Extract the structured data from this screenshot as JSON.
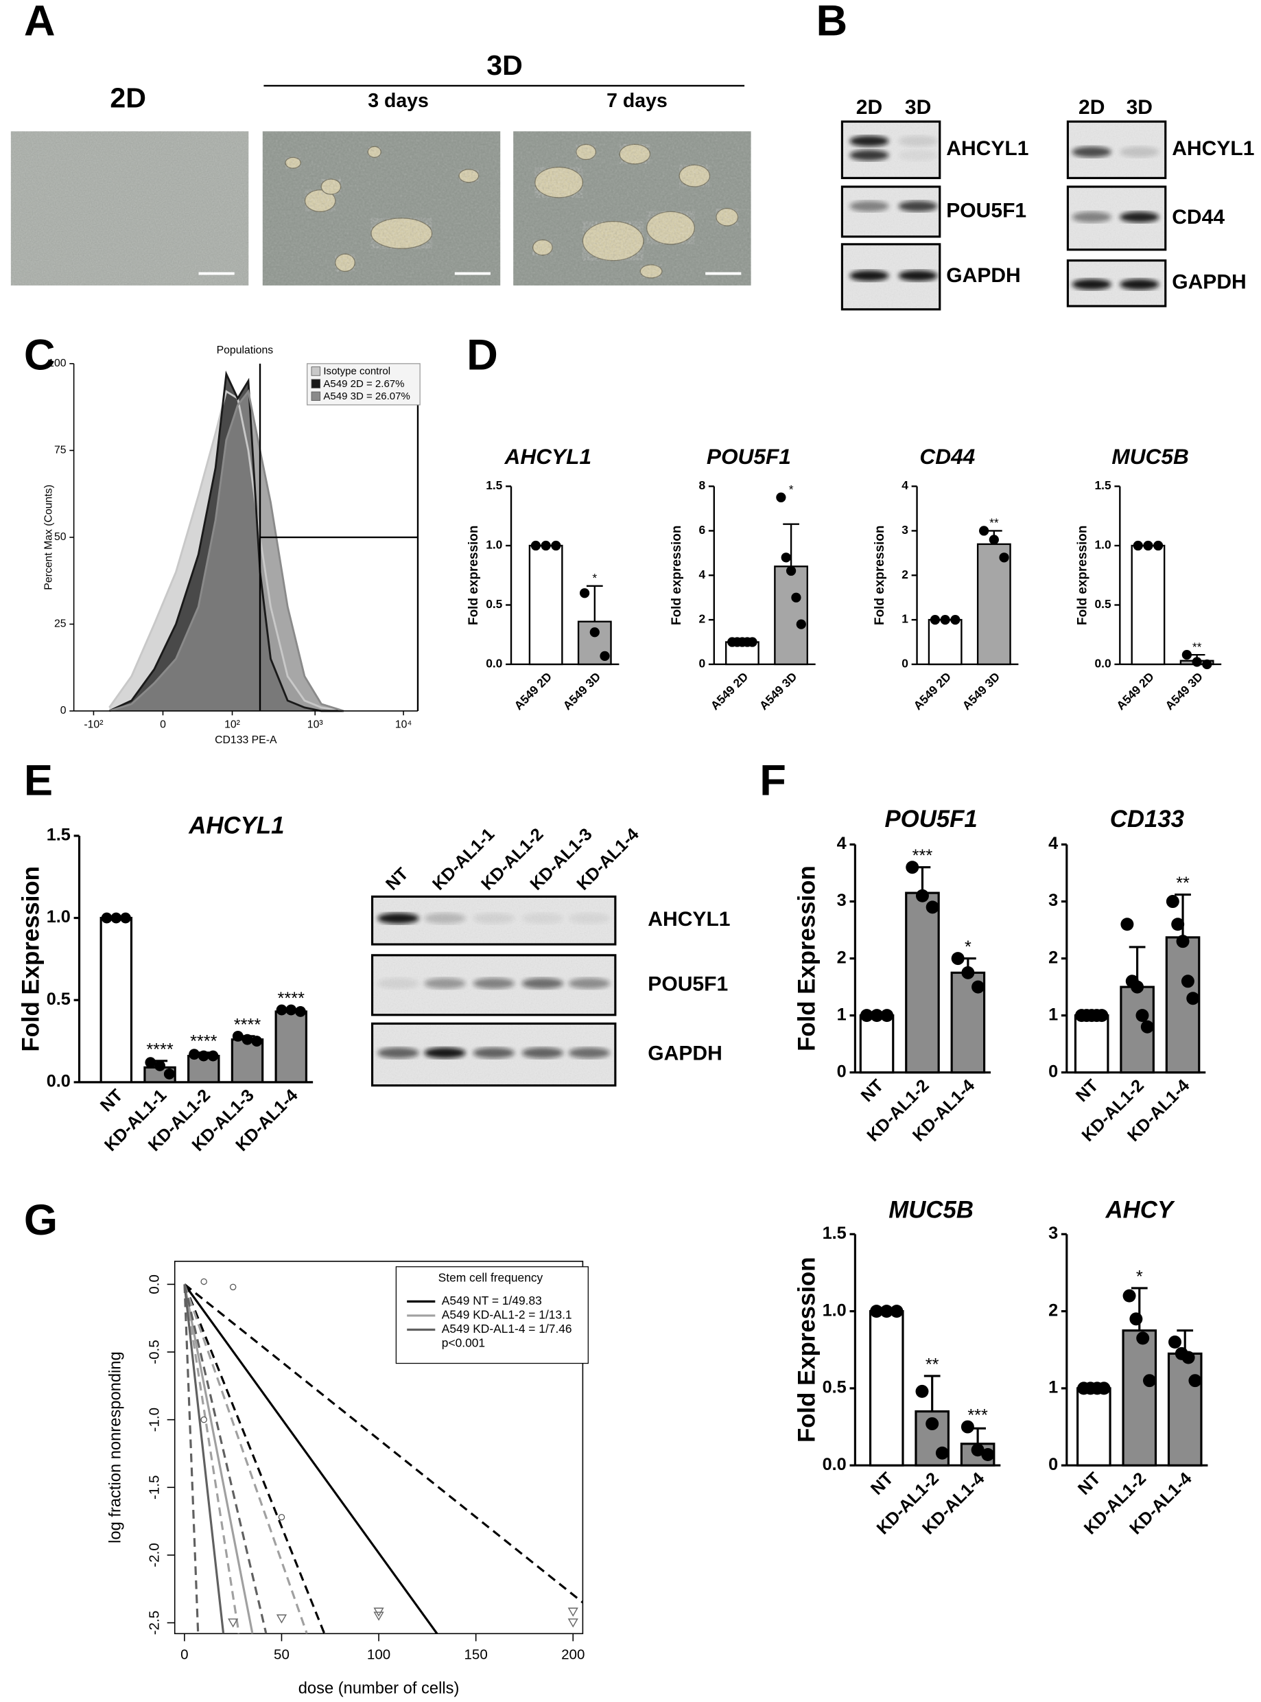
{
  "panels": {
    "a": "A",
    "b": "B",
    "c": "C",
    "d": "D",
    "e": "E",
    "f": "F",
    "g": "G"
  },
  "panel_a": {
    "left": "2D",
    "right": "3D",
    "day3": "3 days",
    "day7": "7 days"
  },
  "blots": [
    {
      "lanes": [
        "2D",
        "3D"
      ],
      "proteins": [
        "AHCYL1",
        "POU5F1",
        "GAPDH"
      ]
    },
    {
      "lanes": [
        "2D",
        "3D"
      ],
      "proteins": [
        "AHCYL1",
        "CD44",
        "GAPDH"
      ]
    },
    {
      "lanes": [
        "NT",
        "KD-AL1-1",
        "KD-AL1-2",
        "KD-AL1-3",
        "KD-AL1-4"
      ],
      "proteins": [
        "AHCYL1",
        "POU5F1",
        "GAPDH"
      ]
    }
  ],
  "chart_data": [
    {
      "type": "area",
      "gate_label": "Populations",
      "xlabel": "CD133 PE-A",
      "ylabel": "Percent Max (Counts)",
      "xscale": "biexponential",
      "xlim": [
        -180,
        14500
      ],
      "xticks": [
        {
          "value": -100,
          "label": "-10²"
        },
        0,
        {
          "value": 100,
          "label": "10²"
        },
        {
          "value": 1000,
          "label": "10³"
        },
        {
          "value": 10000,
          "label": "10⁴"
        }
      ],
      "ylim": [
        0,
        100
      ],
      "yticks": [
        0,
        25,
        50,
        75,
        100
      ],
      "gate": {
        "x": 226,
        "y": 50
      },
      "legend": "upper right",
      "x": [
        -60,
        -25,
        -5,
        8,
        30,
        58,
        83,
        118,
        162,
        226,
        304,
        482,
        758,
        1180,
        2120
      ],
      "series": [
        {
          "name": "Isotype control",
          "color": "#c8c8c8",
          "values": [
            1,
            10,
            25,
            40,
            62,
            80,
            92,
            90,
            75,
            50,
            30,
            10,
            3,
            1,
            0
          ]
        },
        {
          "name": "A549 2D = 2.67%",
          "color": "#1a1a1a",
          "values": [
            0,
            3,
            12,
            25,
            45,
            70,
            97,
            90,
            95,
            40,
            15,
            3,
            1,
            0,
            0
          ]
        },
        {
          "name": "A549 3D = 26.07%",
          "color": "#8a8a8a",
          "values": [
            0,
            2,
            8,
            15,
            30,
            55,
            78,
            88,
            92,
            75,
            60,
            30,
            10,
            2,
            0
          ]
        }
      ]
    },
    {
      "type": "bar",
      "title": "AHCYL1",
      "ylabel": "Fold expression",
      "categories": [
        "A549 2D",
        "A549 3D"
      ],
      "values": [
        1.0,
        0.36
      ],
      "errors": [
        0,
        0.3
      ],
      "points": [
        [
          1,
          1,
          1
        ],
        [
          0.6,
          0.27,
          0.07
        ]
      ],
      "significance": [
        null,
        "*"
      ],
      "colors": [
        "#ffffff",
        "#a6a6a6"
      ],
      "ylim": [
        0,
        1.5
      ],
      "yticks": [
        {
          "value": 0,
          "label": "0.0"
        },
        {
          "value": 0.5,
          "label": "0.5"
        },
        {
          "value": 1,
          "label": "1.0"
        },
        {
          "value": 1.5,
          "label": "1.5"
        }
      ]
    },
    {
      "type": "bar",
      "title": "POU5F1",
      "ylabel": "Fold expression",
      "categories": [
        "A549 2D",
        "A549 3D"
      ],
      "values": [
        1.0,
        4.4
      ],
      "errors": [
        0,
        1.9
      ],
      "points": [
        [
          1,
          1,
          1,
          1,
          1
        ],
        [
          7.5,
          4.8,
          4.2,
          3.0,
          1.8
        ]
      ],
      "significance": [
        null,
        "*"
      ],
      "colors": [
        "#ffffff",
        "#a6a6a6"
      ],
      "ylim": [
        0,
        8
      ],
      "yticks": [
        0,
        2,
        4,
        6,
        8
      ]
    },
    {
      "type": "bar",
      "title": "CD44",
      "ylabel": "Fold expression",
      "categories": [
        "A549 2D",
        "A549 3D"
      ],
      "values": [
        1.0,
        2.7
      ],
      "errors": [
        0,
        0.3
      ],
      "points": [
        [
          1,
          1,
          1
        ],
        [
          3.0,
          2.8,
          2.4
        ]
      ],
      "significance": [
        null,
        "**"
      ],
      "colors": [
        "#ffffff",
        "#a6a6a6"
      ],
      "ylim": [
        0,
        4
      ],
      "yticks": [
        0,
        1,
        2,
        3,
        4
      ]
    },
    {
      "type": "bar",
      "title": "MUC5B",
      "ylabel": "Fold expression",
      "categories": [
        "A549 2D",
        "A549 3D"
      ],
      "values": [
        1.0,
        0.03
      ],
      "errors": [
        0,
        0.05
      ],
      "points": [
        [
          1,
          1,
          1
        ],
        [
          0.08,
          0.02,
          0.0
        ]
      ],
      "significance": [
        null,
        "**"
      ],
      "colors": [
        "#ffffff",
        "#a6a6a6"
      ],
      "ylim": [
        0,
        1.5
      ],
      "yticks": [
        {
          "value": 0,
          "label": "0.0"
        },
        {
          "value": 0.5,
          "label": "0.5"
        },
        {
          "value": 1,
          "label": "1.0"
        },
        {
          "value": 1.5,
          "label": "1.5"
        }
      ]
    },
    {
      "type": "bar",
      "title": "AHCYL1",
      "ylabel": "Fold Expression",
      "categories": [
        "NT",
        "KD-AL1-1",
        "KD-AL1-2",
        "KD-AL1-3",
        "KD-AL1-4"
      ],
      "values": [
        1.0,
        0.09,
        0.16,
        0.26,
        0.43
      ],
      "errors": [
        0,
        0.04,
        0.02,
        0.02,
        0.01
      ],
      "points": [
        [
          1,
          1,
          1
        ],
        [
          0.12,
          0.1,
          0.05
        ],
        [
          0.17,
          0.16,
          0.16
        ],
        [
          0.28,
          0.26,
          0.25
        ],
        [
          0.44,
          0.44,
          0.43
        ]
      ],
      "significance": [
        null,
        "****",
        "****",
        "****",
        "****"
      ],
      "colors": [
        "#ffffff",
        "#8c8c8c",
        "#8c8c8c",
        "#8c8c8c",
        "#8c8c8c"
      ],
      "ylim": [
        0,
        1.5
      ],
      "yticks": [
        {
          "value": 0,
          "label": "0.0"
        },
        {
          "value": 0.5,
          "label": "0.5"
        },
        {
          "value": 1,
          "label": "1.0"
        },
        {
          "value": 1.5,
          "label": "1.5"
        }
      ]
    },
    {
      "type": "bar",
      "title": "POU5F1",
      "ylabel": "Fold Expression",
      "categories": [
        "NT",
        "KD-AL1-2",
        "KD-AL1-4"
      ],
      "values": [
        1.0,
        3.15,
        1.75
      ],
      "errors": [
        0,
        0.45,
        0.25
      ],
      "points": [
        [
          1,
          1,
          1
        ],
        [
          3.6,
          3.1,
          2.9
        ],
        [
          2.0,
          1.75,
          1.5
        ]
      ],
      "significance": [
        null,
        "***",
        "*"
      ],
      "colors": [
        "#ffffff",
        "#8c8c8c",
        "#8c8c8c"
      ],
      "ylim": [
        0,
        4
      ],
      "yticks": [
        0,
        1,
        2,
        3,
        4
      ]
    },
    {
      "type": "bar",
      "title": "CD133",
      "categories": [
        "NT",
        "KD-AL1-2",
        "KD-AL1-4"
      ],
      "values": [
        1.0,
        1.5,
        2.37
      ],
      "errors": [
        0,
        0.7,
        0.75
      ],
      "points": [
        [
          1,
          1,
          1,
          1,
          1
        ],
        [
          2.6,
          1.6,
          1.5,
          1.0,
          0.8
        ],
        [
          3.0,
          2.6,
          2.3,
          1.6,
          1.3
        ]
      ],
      "significance": [
        null,
        null,
        "**"
      ],
      "colors": [
        "#ffffff",
        "#8c8c8c",
        "#8c8c8c"
      ],
      "ylim": [
        0,
        4
      ],
      "yticks": [
        0,
        1,
        2,
        3,
        4
      ]
    },
    {
      "type": "bar",
      "title": "MUC5B",
      "ylabel": "Fold Expression",
      "categories": [
        "NT",
        "KD-AL1-2",
        "KD-AL1-4"
      ],
      "values": [
        1.0,
        0.35,
        0.14
      ],
      "errors": [
        0,
        0.23,
        0.1
      ],
      "points": [
        [
          1,
          1,
          1
        ],
        [
          0.48,
          0.27,
          0.08
        ],
        [
          0.25,
          0.1,
          0.07
        ]
      ],
      "significance": [
        null,
        "**",
        "***"
      ],
      "colors": [
        "#ffffff",
        "#8c8c8c",
        "#8c8c8c"
      ],
      "ylim": [
        0,
        1.5
      ],
      "yticks": [
        {
          "value": 0,
          "label": "0.0"
        },
        {
          "value": 0.5,
          "label": "0.5"
        },
        {
          "value": 1,
          "label": "1.0"
        },
        {
          "value": 1.5,
          "label": "1.5"
        }
      ]
    },
    {
      "type": "bar",
      "title": "AHCY",
      "categories": [
        "NT",
        "KD-AL1-2",
        "KD-AL1-4"
      ],
      "values": [
        1.0,
        1.75,
        1.45
      ],
      "errors": [
        0,
        0.55,
        0.3
      ],
      "points": [
        [
          1,
          1,
          1,
          1
        ],
        [
          2.2,
          1.9,
          1.65,
          1.1
        ],
        [
          1.6,
          1.45,
          1.4,
          1.1
        ]
      ],
      "significance": [
        null,
        "*",
        null
      ],
      "colors": [
        "#ffffff",
        "#8c8c8c",
        "#8c8c8c"
      ],
      "ylim": [
        0,
        3
      ],
      "yticks": [
        0,
        1,
        2,
        3
      ]
    },
    {
      "type": "line",
      "legend_title": "Stem cell frequency",
      "note": "p<0.001",
      "legend": "upper right",
      "xlabel": "dose (number of cells)",
      "ylabel": "log fraction nonresponding",
      "xlim": [
        -5,
        205
      ],
      "xticks": [
        0,
        50,
        100,
        150,
        200
      ],
      "ylim": [
        -2.58,
        0.17
      ],
      "yticks": [
        {
          "value": 0,
          "label": "0.0"
        },
        -0.5,
        {
          "value": -1,
          "label": "-1.0"
        },
        -1.5,
        {
          "value": -2,
          "label": "-2.0"
        },
        -2.5
      ],
      "series": [
        {
          "name": "A549 NT = 1/49.83",
          "color": "#000000",
          "x": [
            0,
            130
          ],
          "values": [
            0,
            -2.58
          ],
          "ci": [
            {
              "x": [
                0,
                205
              ],
              "values": [
                0,
                -2.35
              ]
            },
            {
              "x": [
                0,
                72
              ],
              "values": [
                0,
                -2.58
              ]
            }
          ]
        },
        {
          "name": "A549 KD-AL1-2 = 1/13.1",
          "color": "#a0a0a0",
          "x": [
            0,
            35
          ],
          "values": [
            0,
            -2.58
          ],
          "ci": [
            {
              "x": [
                0,
                63
              ],
              "values": [
                0,
                -2.58
              ]
            },
            {
              "x": [
                0,
                28
              ],
              "values": [
                0,
                -2.58
              ]
            }
          ]
        },
        {
          "name": "A549 KD-AL1-4 = 1/7.46",
          "color": "#606060",
          "x": [
            0,
            20
          ],
          "values": [
            0,
            -2.58
          ],
          "ci": [
            {
              "x": [
                0,
                42
              ],
              "values": [
                0,
                -2.58
              ]
            },
            {
              "x": [
                0,
                7
              ],
              "values": [
                0,
                -2.58
              ]
            }
          ]
        }
      ],
      "points": {
        "x": [
          10,
          25,
          10,
          50,
          25,
          50,
          100,
          100,
          200,
          200
        ],
        "values": [
          0.02,
          -0.02,
          -1.0,
          -1.72,
          -2.5,
          -2.47,
          -2.42,
          -2.45,
          -2.42,
          -2.5
        ],
        "markers": [
          "circle",
          "circle",
          "circle",
          "circle",
          "triangle",
          "triangle",
          "triangle",
          "triangle",
          "triangle",
          "triangle"
        ]
      }
    }
  ]
}
